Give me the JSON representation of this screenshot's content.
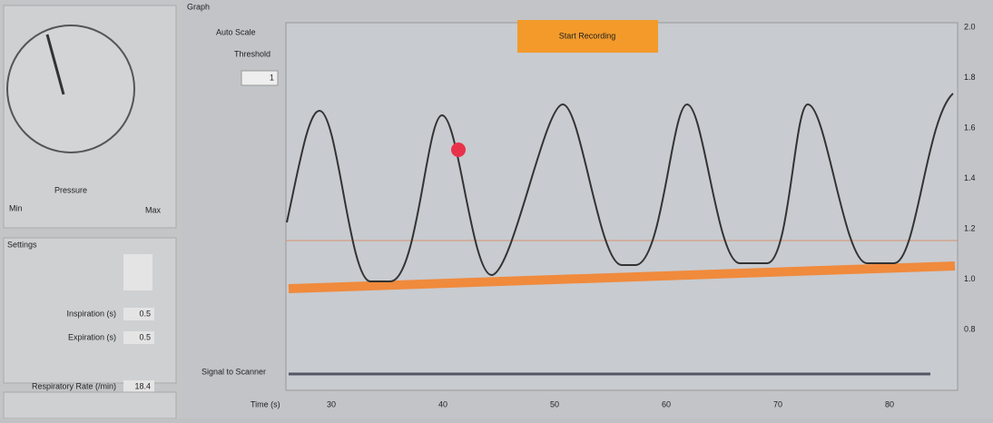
{
  "gauge": {
    "label": "Pressure",
    "min": "Min",
    "max": "Max"
  },
  "settings": {
    "title": "Settings",
    "fields": [
      {
        "label": "Inspiration (s)",
        "value": "0.5"
      },
      {
        "label": "Expiration (s)",
        "value": "0.5"
      },
      {
        "label": "Respiratory Rate (/min)",
        "value": "18.4"
      }
    ]
  },
  "graph": {
    "title": "Graph",
    "auto_scale": "Auto Scale",
    "threshold_label": "Threshold",
    "threshold_value": "1",
    "button": "Start Recording",
    "signal_label": "Signal to Scanner",
    "x_label": "Time (s)",
    "x_ticks": [
      "30",
      "40",
      "50",
      "60",
      "70",
      "80"
    ],
    "y_ticks": [
      "2.0",
      "1.8",
      "1.6",
      "1.4",
      "1.2",
      "1.0",
      "0.8"
    ]
  }
}
